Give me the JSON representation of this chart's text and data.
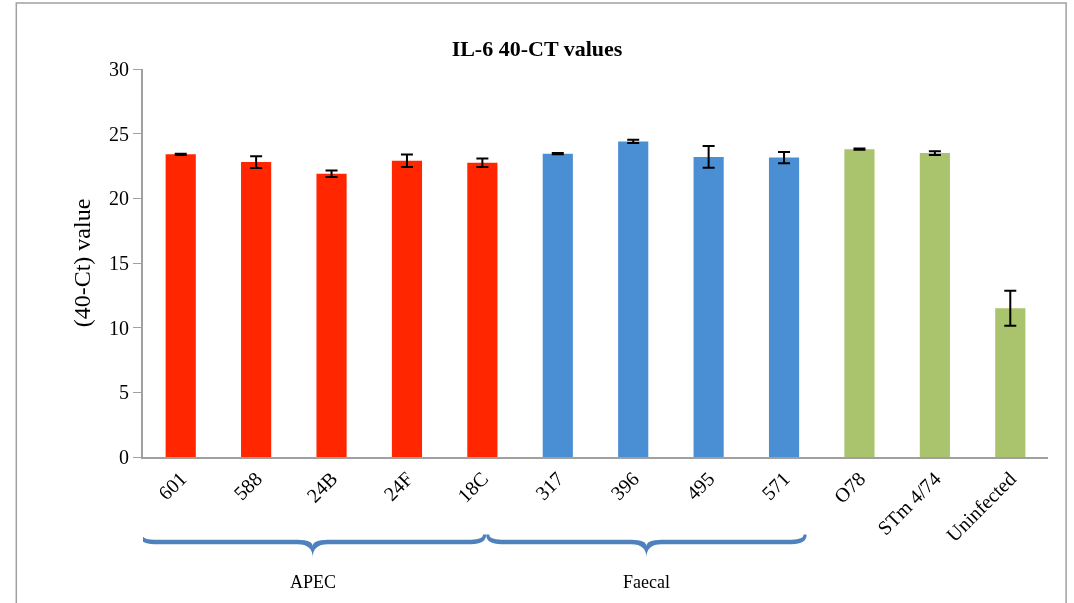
{
  "chart_data": {
    "type": "bar",
    "title": "IL-6 40-CT values",
    "ylabel": "(40-Ct) value",
    "categories": [
      "601",
      "588",
      "24B",
      "24F",
      "18C",
      "317",
      "396",
      "495",
      "571",
      "O78",
      "STm 4/74",
      "Uninfected"
    ],
    "values": [
      23.4,
      22.8,
      21.9,
      22.9,
      22.75,
      23.45,
      24.4,
      23.2,
      23.15,
      23.8,
      23.5,
      11.5
    ],
    "errors": [
      0.05,
      0.45,
      0.25,
      0.48,
      0.33,
      0.05,
      0.13,
      0.84,
      0.43,
      0.05,
      0.15,
      1.35
    ],
    "colors": [
      "#ff2600",
      "#ff2600",
      "#ff2600",
      "#ff2600",
      "#ff2600",
      "#4a8fd3",
      "#4a8fd3",
      "#4a8fd3",
      "#4a8fd3",
      "#a9c46c",
      "#a9c46c",
      "#a9c46c"
    ],
    "ylim": [
      0,
      30
    ],
    "yticks": [
      0,
      5,
      10,
      15,
      20,
      25,
      30
    ],
    "legend": false,
    "annotations": [
      "APEC",
      "Faecal"
    ]
  }
}
